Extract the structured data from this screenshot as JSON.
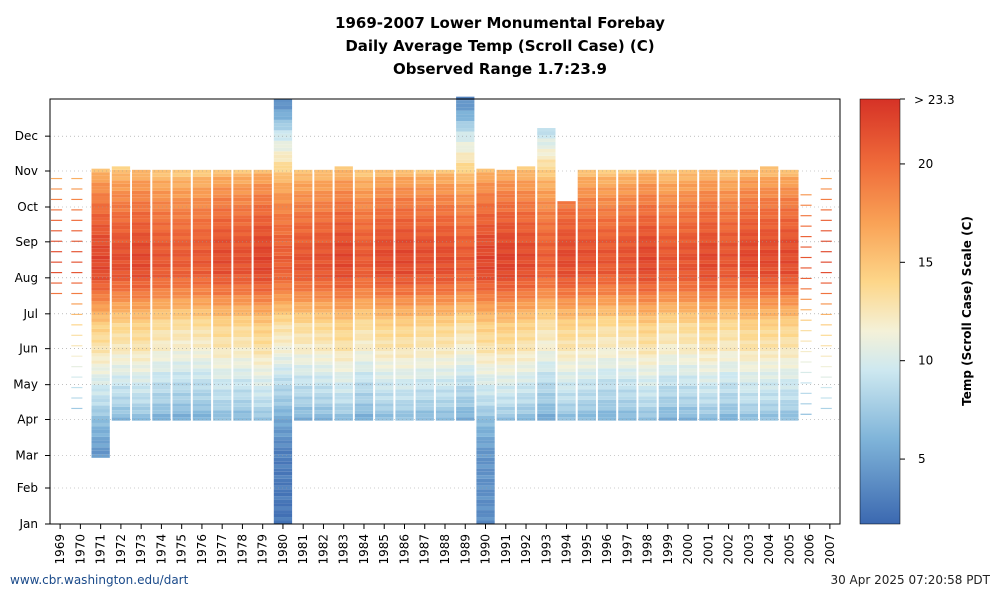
{
  "chart_data": {
    "type": "heatmap",
    "title_lines": [
      "1969-2007 Lower Monumental Forebay",
      "Daily Average Temp (Scroll Case) (C)",
      "Observed Range 1.7:23.9"
    ],
    "x_tick_labels": [
      "1969",
      "1970",
      "1971",
      "1972",
      "1973",
      "1974",
      "1975",
      "1976",
      "1977",
      "1978",
      "1979",
      "1980",
      "1981",
      "1982",
      "1983",
      "1984",
      "1985",
      "1986",
      "1987",
      "1988",
      "1989",
      "1990",
      "1991",
      "1992",
      "1993",
      "1994",
      "1995",
      "1996",
      "1997",
      "1998",
      "1999",
      "2000",
      "2001",
      "2002",
      "2003",
      "2004",
      "2005",
      "2006",
      "2007"
    ],
    "y_tick_labels": [
      "Jan",
      "Feb",
      "Mar",
      "Apr",
      "May",
      "Jun",
      "Jul",
      "Aug",
      "Sep",
      "Oct",
      "Nov",
      "Dec"
    ],
    "colorbar": {
      "label": "Temp (Scroll Case) Scale (C)",
      "range": [
        1.7,
        23.3
      ],
      "ticks": [
        5,
        10,
        15,
        20
      ],
      "tick_labels": [
        "5",
        "10",
        "15",
        "20"
      ],
      "max_label": "> 23.3",
      "stops": [
        {
          "t": 1.7,
          "color": "#3b68b0"
        },
        {
          "t": 6.0,
          "color": "#7fb4d9"
        },
        {
          "t": 9.5,
          "color": "#cde8f0"
        },
        {
          "t": 11.5,
          "color": "#f4f1d8"
        },
        {
          "t": 14.0,
          "color": "#fdd689"
        },
        {
          "t": 17.0,
          "color": "#f9a256"
        },
        {
          "t": 20.0,
          "color": "#ef6b3a"
        },
        {
          "t": 23.3,
          "color": "#d63226"
        }
      ]
    },
    "grid": true,
    "seasonal_profile": [
      {
        "doy": 1,
        "temp": 3.0
      },
      {
        "doy": 60,
        "temp": 3.5
      },
      {
        "doy": 90,
        "temp": 6.0
      },
      {
        "doy": 105,
        "temp": 8.0
      },
      {
        "doy": 120,
        "temp": 9.0
      },
      {
        "doy": 135,
        "temp": 10.5
      },
      {
        "doy": 152,
        "temp": 12.2
      },
      {
        "doy": 170,
        "temp": 13.5
      },
      {
        "doy": 182,
        "temp": 15.5
      },
      {
        "doy": 200,
        "temp": 19.0
      },
      {
        "doy": 215,
        "temp": 21.0
      },
      {
        "doy": 230,
        "temp": 21.3
      },
      {
        "doy": 245,
        "temp": 20.8
      },
      {
        "doy": 265,
        "temp": 19.5
      },
      {
        "doy": 280,
        "temp": 18.2
      },
      {
        "doy": 295,
        "temp": 16.5
      },
      {
        "doy": 305,
        "temp": 14.5
      },
      {
        "doy": 320,
        "temp": 12.0
      },
      {
        "doy": 335,
        "temp": 10.0
      },
      {
        "doy": 350,
        "temp": 6.5
      },
      {
        "doy": 365,
        "temp": 4.0
      }
    ],
    "year_coverage": [
      {
        "year": "1969",
        "start_doy": 199,
        "end_doy": 300,
        "sparse": true,
        "offset": 0.0
      },
      {
        "year": "1970",
        "start_doy": 100,
        "end_doy": 300,
        "sparse": true,
        "offset": 0.0
      },
      {
        "year": "1971",
        "start_doy": 58,
        "end_doy": 306,
        "sparse": false,
        "offset": 0.8
      },
      {
        "year": "1972",
        "start_doy": 90,
        "end_doy": 306,
        "sparse": false,
        "offset": 0.3
      },
      {
        "year": "1973",
        "start_doy": 90,
        "end_doy": 305,
        "sparse": false,
        "offset": 0.6
      },
      {
        "year": "1974",
        "start_doy": 90,
        "end_doy": 305,
        "sparse": false,
        "offset": -0.2
      },
      {
        "year": "1975",
        "start_doy": 90,
        "end_doy": 305,
        "sparse": false,
        "offset": -0.4
      },
      {
        "year": "1976",
        "start_doy": 90,
        "end_doy": 305,
        "sparse": false,
        "offset": -0.3
      },
      {
        "year": "1977",
        "start_doy": 90,
        "end_doy": 305,
        "sparse": false,
        "offset": 0.4
      },
      {
        "year": "1978",
        "start_doy": 90,
        "end_doy": 305,
        "sparse": false,
        "offset": 0.2
      },
      {
        "year": "1979",
        "start_doy": 90,
        "end_doy": 305,
        "sparse": false,
        "offset": 0.9
      },
      {
        "year": "1980",
        "start_doy": 1,
        "end_doy": 366,
        "sparse": false,
        "offset": -0.5
      },
      {
        "year": "1981",
        "start_doy": 90,
        "end_doy": 305,
        "sparse": false,
        "offset": -0.1
      },
      {
        "year": "1982",
        "start_doy": 90,
        "end_doy": 305,
        "sparse": false,
        "offset": 0.1
      },
      {
        "year": "1983",
        "start_doy": 90,
        "end_doy": 308,
        "sparse": false,
        "offset": 0.7
      },
      {
        "year": "1984",
        "start_doy": 90,
        "end_doy": 305,
        "sparse": false,
        "offset": -0.3
      },
      {
        "year": "1985",
        "start_doy": 90,
        "end_doy": 305,
        "sparse": false,
        "offset": 0.5
      },
      {
        "year": "1986",
        "start_doy": 90,
        "end_doy": 305,
        "sparse": false,
        "offset": 0.6
      },
      {
        "year": "1987",
        "start_doy": 90,
        "end_doy": 305,
        "sparse": false,
        "offset": 0.3
      },
      {
        "year": "1988",
        "start_doy": 90,
        "end_doy": 305,
        "sparse": false,
        "offset": 0.4
      },
      {
        "year": "1989",
        "start_doy": 90,
        "end_doy": 366,
        "sparse": false,
        "offset": -0.4
      },
      {
        "year": "1990",
        "start_doy": 1,
        "end_doy": 305,
        "sparse": false,
        "offset": 0.8
      },
      {
        "year": "1991",
        "start_doy": 90,
        "end_doy": 305,
        "sparse": false,
        "offset": 1.0
      },
      {
        "year": "1992",
        "start_doy": 90,
        "end_doy": 306,
        "sparse": false,
        "offset": 0.5
      },
      {
        "year": "1993",
        "start_doy": 90,
        "end_doy": 340,
        "sparse": false,
        "offset": -0.6
      },
      {
        "year": "1994",
        "start_doy": 90,
        "end_doy": 278,
        "sparse": false,
        "offset": 0.6
      },
      {
        "year": "1995",
        "start_doy": 90,
        "end_doy": 305,
        "sparse": false,
        "offset": 0.2
      },
      {
        "year": "1996",
        "start_doy": 90,
        "end_doy": 305,
        "sparse": false,
        "offset": -0.2
      },
      {
        "year": "1997",
        "start_doy": 90,
        "end_doy": 305,
        "sparse": false,
        "offset": 0.1
      },
      {
        "year": "1998",
        "start_doy": 90,
        "end_doy": 305,
        "sparse": false,
        "offset": 0.7
      },
      {
        "year": "1999",
        "start_doy": 90,
        "end_doy": 305,
        "sparse": false,
        "offset": -0.2
      },
      {
        "year": "2000",
        "start_doy": 90,
        "end_doy": 305,
        "sparse": false,
        "offset": 0.1
      },
      {
        "year": "2001",
        "start_doy": 90,
        "end_doy": 305,
        "sparse": false,
        "offset": 0.6
      },
      {
        "year": "2002",
        "start_doy": 90,
        "end_doy": 305,
        "sparse": false,
        "offset": 0.0
      },
      {
        "year": "2003",
        "start_doy": 90,
        "end_doy": 305,
        "sparse": false,
        "offset": 0.7
      },
      {
        "year": "2004",
        "start_doy": 90,
        "end_doy": 308,
        "sparse": false,
        "offset": 0.6
      },
      {
        "year": "2005",
        "start_doy": 90,
        "end_doy": 305,
        "sparse": false,
        "offset": 0.5
      },
      {
        "year": "2006",
        "start_doy": 95,
        "end_doy": 290,
        "sparse": true,
        "offset": 0.5
      },
      {
        "year": "2007",
        "start_doy": 100,
        "end_doy": 305,
        "sparse": true,
        "offset": 0.3
      }
    ]
  },
  "footer": {
    "left": "www.cbr.washington.edu/dart",
    "right": "30 Apr 2025 07:20:58 PDT"
  }
}
